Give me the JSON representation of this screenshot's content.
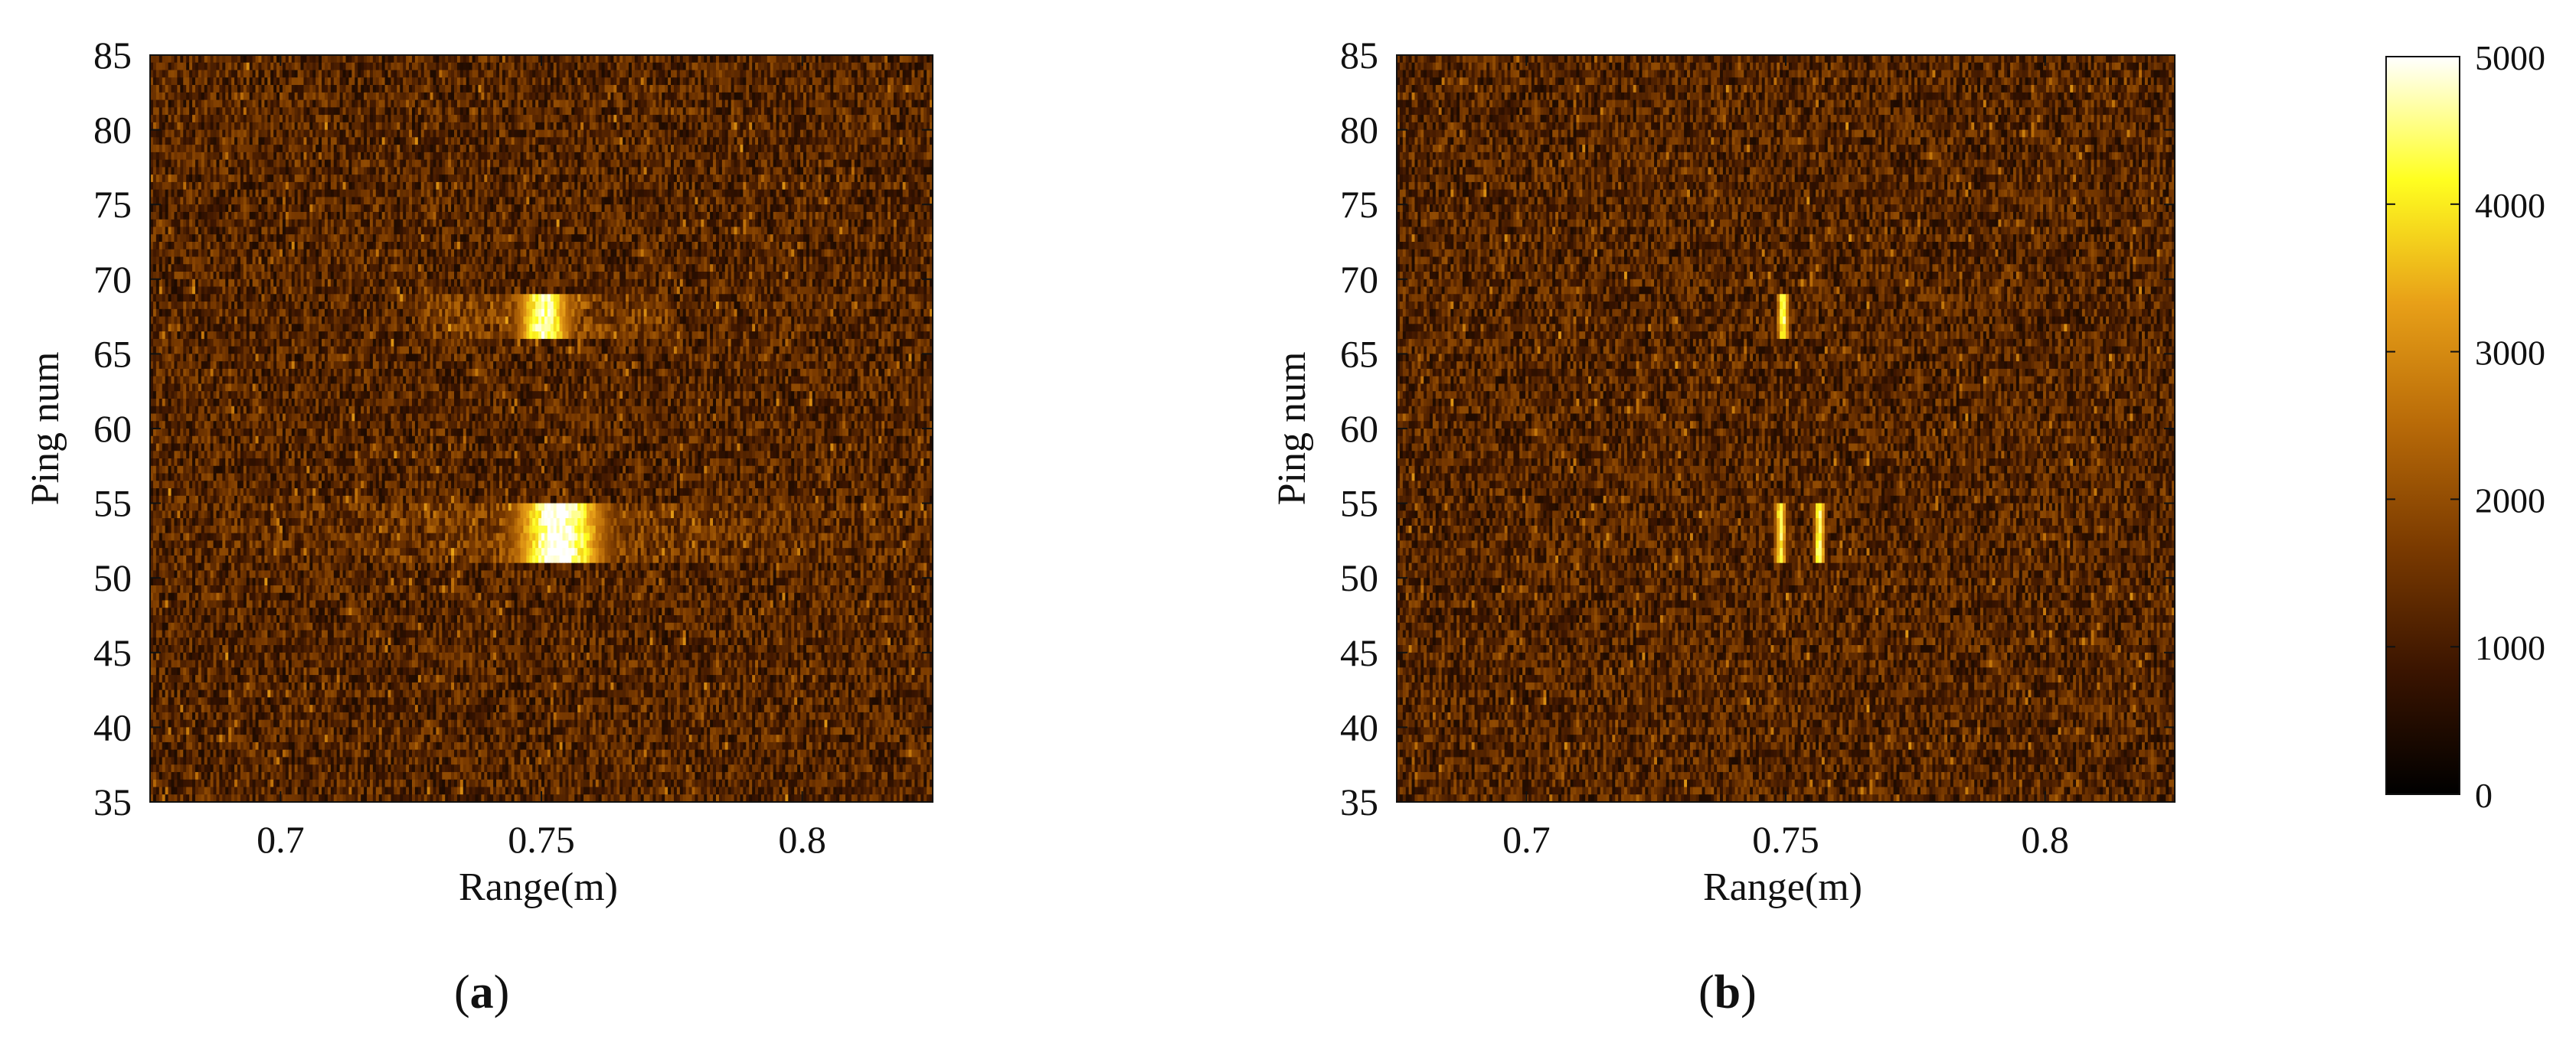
{
  "figure": {
    "colormap": [
      "#000000",
      "#3a1400",
      "#7a3a00",
      "#b86a08",
      "#e8a018",
      "#ffff20",
      "#ffffff"
    ],
    "background": "#ffffff"
  },
  "colorbar": {
    "min": 0,
    "max": 5000,
    "tick_labels": [
      "0",
      "1000",
      "2000",
      "3000",
      "4000",
      "5000"
    ],
    "tick_values": [
      0,
      1000,
      2000,
      3000,
      4000,
      5000
    ]
  },
  "chart_data": [
    {
      "type": "heatmap",
      "panel_label": "a",
      "xlabel": "Range(m)",
      "ylabel": "Ping num",
      "xlim": [
        0.675,
        0.825
      ],
      "ylim": [
        35,
        85
      ],
      "x_ticks": [
        0.7,
        0.75,
        0.8
      ],
      "x_tick_labels": [
        "0.7",
        "0.75",
        "0.8"
      ],
      "y_ticks": [
        35,
        40,
        45,
        50,
        55,
        60,
        65,
        70,
        75,
        80,
        85
      ],
      "y_tick_labels": [
        "35",
        "40",
        "45",
        "50",
        "55",
        "60",
        "65",
        "70",
        "75",
        "80",
        "85"
      ],
      "noise_level_mean": 1200,
      "bright_regions": [
        {
          "ping_range": [
            66,
            69
          ],
          "range_center": 0.7505,
          "peak_width": 0.008,
          "halo_range": [
            0.725,
            0.775
          ],
          "peak_value": 4600
        },
        {
          "ping_range": [
            51,
            55
          ],
          "range_center": 0.7535,
          "peak_width": 0.013,
          "halo_range": [
            0.68,
            0.82
          ],
          "peak_value": 5000
        }
      ]
    },
    {
      "type": "heatmap",
      "panel_label": "b",
      "xlabel": "Range(m)",
      "ylabel": "Ping num",
      "xlim": [
        0.675,
        0.825
      ],
      "ylim": [
        35,
        85
      ],
      "x_ticks": [
        0.7,
        0.75,
        0.8
      ],
      "x_tick_labels": [
        "0.7",
        "0.75",
        "0.8"
      ],
      "y_ticks": [
        35,
        40,
        45,
        50,
        55,
        60,
        65,
        70,
        75,
        80,
        85
      ],
      "y_tick_labels": [
        "35",
        "40",
        "45",
        "50",
        "55",
        "60",
        "65",
        "70",
        "75",
        "80",
        "85"
      ],
      "noise_level_mean": 1200,
      "bright_regions": [
        {
          "ping_range": [
            66,
            69
          ],
          "range_center": 0.7495,
          "peak_width": 0.0018,
          "halo_range": [
            0.7495,
            0.7495
          ],
          "peak_value": 4700
        },
        {
          "ping_range": [
            51,
            55
          ],
          "range_center": 0.749,
          "peak_width": 0.0018,
          "halo_range": [
            0.749,
            0.749
          ],
          "peak_value": 4500
        },
        {
          "ping_range": [
            51,
            55
          ],
          "range_center": 0.7565,
          "peak_width": 0.0016,
          "halo_range": [
            0.7565,
            0.7565
          ],
          "peak_value": 4900
        }
      ]
    }
  ]
}
